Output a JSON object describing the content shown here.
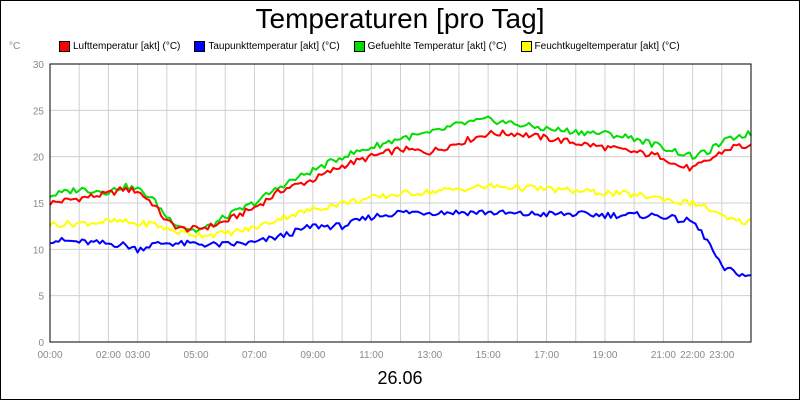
{
  "chart_data": {
    "type": "line",
    "title": "Temperaturen [pro Tag]",
    "ylabel": "°C",
    "xlabel": "26.06",
    "ylim": [
      0,
      30
    ],
    "yticks": [
      0,
      5,
      10,
      15,
      20,
      25,
      30
    ],
    "xlim": [
      0,
      24
    ],
    "xticks": [
      {
        "x": 0,
        "label": "00:00"
      },
      {
        "x": 2,
        "label": "02:00"
      },
      {
        "x": 3,
        "label": "03:00"
      },
      {
        "x": 5,
        "label": "05:00"
      },
      {
        "x": 7,
        "label": "07:00"
      },
      {
        "x": 9,
        "label": "09:00"
      },
      {
        "x": 11,
        "label": "11:00"
      },
      {
        "x": 13,
        "label": "13:00"
      },
      {
        "x": 15,
        "label": "15:00"
      },
      {
        "x": 17,
        "label": "17:00"
      },
      {
        "x": 19,
        "label": "19:00"
      },
      {
        "x": 21,
        "label": "21:00"
      },
      {
        "x": 22,
        "label": "22:00"
      },
      {
        "x": 23,
        "label": "23:00"
      }
    ],
    "grid": true,
    "x": [
      0,
      1,
      2,
      2.5,
      3,
      3.5,
      4,
      4.5,
      5,
      5.5,
      6,
      7,
      8,
      9,
      10,
      11,
      12,
      13,
      14,
      15,
      16,
      17,
      18,
      19,
      20,
      21,
      21.5,
      22,
      22.5,
      23,
      23.5,
      24
    ],
    "series": [
      {
        "name": "Lufttemperatur [akt] (°C)",
        "color": "#ff0000",
        "values": [
          15,
          15.5,
          16,
          16.5,
          16.3,
          15,
          13,
          12.2,
          12.2,
          12.5,
          13,
          14.5,
          16.5,
          17.5,
          19,
          20,
          20.8,
          20.5,
          21.5,
          22.5,
          22.5,
          22,
          21.5,
          21,
          20.5,
          20,
          19,
          18.7,
          19.5,
          20.5,
          21.2,
          21
        ]
      },
      {
        "name": "Taupunkttemperatur [akt] (°C)",
        "color": "#0000ff",
        "values": [
          11,
          10.8,
          10.6,
          10.5,
          10,
          10.5,
          10.7,
          10.6,
          10.6,
          10.5,
          10.5,
          10.7,
          11.5,
          12.5,
          12.5,
          13.5,
          14,
          14,
          14,
          14,
          13.8,
          13.8,
          13.8,
          13.7,
          13.7,
          13.6,
          13.2,
          13,
          11,
          8,
          7.5,
          7
        ]
      },
      {
        "name": "Gefuehlte Temperatur [akt] (°C)",
        "color": "#00dd00",
        "values": [
          15.8,
          16.5,
          16.2,
          16.8,
          16.5,
          15.5,
          13.5,
          12.5,
          12,
          12.5,
          13.5,
          15,
          17,
          18.5,
          20,
          21,
          22,
          22.5,
          23.5,
          24,
          23.5,
          23,
          22.7,
          22.5,
          22,
          21,
          20.5,
          20,
          20.5,
          21.5,
          22.2,
          22.5
        ]
      },
      {
        "name": "Feuchtkugeltemperatur [akt] (°C)",
        "color": "#ffff00",
        "values": [
          12.7,
          12.8,
          13,
          13,
          12.7,
          12.8,
          12.2,
          11.8,
          11.6,
          11.6,
          11.7,
          12.3,
          13.5,
          14.3,
          15,
          15.5,
          16,
          16.2,
          16.5,
          16.8,
          16.7,
          16.5,
          16.3,
          16.1,
          15.9,
          15.5,
          15.1,
          15,
          14.5,
          13.5,
          13,
          13
        ]
      }
    ]
  }
}
